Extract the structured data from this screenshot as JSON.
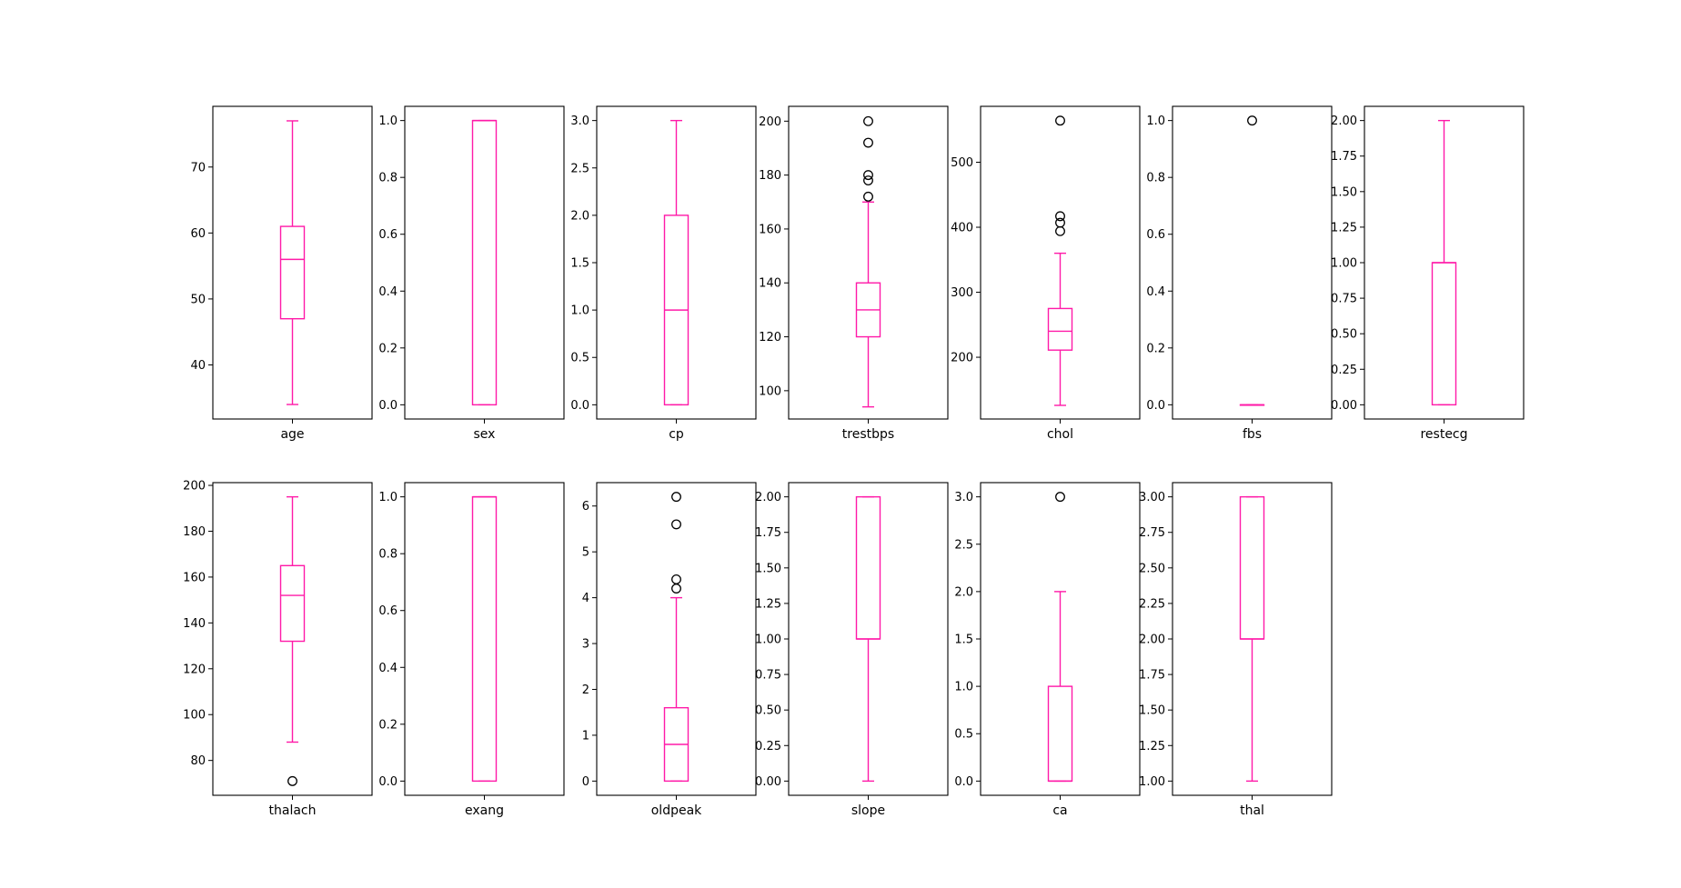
{
  "chart_data": {
    "type": "box",
    "box_color": "#ff1aa8",
    "grid": false,
    "panels": [
      {
        "label": "age",
        "ylim": [
          31.8,
          79.2
        ],
        "ticks": [
          40,
          50,
          60,
          70
        ],
        "tick_labels": [
          "40",
          "50",
          "60",
          "70"
        ],
        "box": {
          "whislo": 34,
          "q1": 47,
          "med": 56,
          "q3": 61,
          "whishi": 77
        },
        "outliers": []
      },
      {
        "label": "sex",
        "ylim": [
          -0.05,
          1.05
        ],
        "ticks": [
          0.0,
          0.2,
          0.4,
          0.6,
          0.8,
          1.0
        ],
        "tick_labels": [
          "0.0",
          "0.2",
          "0.4",
          "0.6",
          "0.8",
          "1.0"
        ],
        "box": {
          "whislo": 0,
          "q1": 0,
          "med": 1,
          "q3": 1,
          "whishi": 1
        },
        "outliers": []
      },
      {
        "label": "cp",
        "ylim": [
          -0.15,
          3.15
        ],
        "ticks": [
          0.0,
          0.5,
          1.0,
          1.5,
          2.0,
          2.5,
          3.0
        ],
        "tick_labels": [
          "0.0",
          "0.5",
          "1.0",
          "1.5",
          "2.0",
          "2.5",
          "3.0"
        ],
        "box": {
          "whislo": 0,
          "q1": 0,
          "med": 1,
          "q3": 2,
          "whishi": 3
        },
        "outliers": []
      },
      {
        "label": "trestbps",
        "ylim": [
          89.5,
          205.5
        ],
        "ticks": [
          100,
          120,
          140,
          160,
          180,
          200
        ],
        "tick_labels": [
          "100",
          "120",
          "140",
          "160",
          "180",
          "200"
        ],
        "box": {
          "whislo": 94,
          "q1": 120,
          "med": 130,
          "q3": 140,
          "whishi": 170
        },
        "outliers": [
          172,
          178,
          180,
          192,
          200
        ]
      },
      {
        "label": "chol",
        "ylim": [
          105,
          586
        ],
        "ticks": [
          200,
          300,
          400,
          500
        ],
        "tick_labels": [
          "200",
          "300",
          "400",
          "500"
        ],
        "box": {
          "whislo": 126,
          "q1": 211,
          "med": 240,
          "q3": 275,
          "whishi": 360
        },
        "outliers": [
          394,
          407,
          417,
          564
        ]
      },
      {
        "label": "fbs",
        "ylim": [
          -0.05,
          1.05
        ],
        "ticks": [
          0.0,
          0.2,
          0.4,
          0.6,
          0.8,
          1.0
        ],
        "tick_labels": [
          "0.0",
          "0.2",
          "0.4",
          "0.6",
          "0.8",
          "1.0"
        ],
        "box": {
          "whislo": 0,
          "q1": 0,
          "med": 0,
          "q3": 0,
          "whishi": 0
        },
        "outliers": [
          1
        ]
      },
      {
        "label": "restecg",
        "ylim": [
          -0.1,
          2.1
        ],
        "ticks": [
          0.0,
          0.25,
          0.5,
          0.75,
          1.0,
          1.25,
          1.5,
          1.75,
          2.0
        ],
        "tick_labels": [
          "0.00",
          "0.25",
          "0.50",
          "0.75",
          "1.00",
          "1.25",
          "1.50",
          "1.75",
          "2.00"
        ],
        "box": {
          "whislo": 0,
          "q1": 0,
          "med": 1,
          "q3": 1,
          "whishi": 2
        },
        "outliers": []
      },
      {
        "label": "thalach",
        "ylim": [
          64.8,
          201.2
        ],
        "ticks": [
          80,
          100,
          120,
          140,
          160,
          180,
          200
        ],
        "tick_labels": [
          "80",
          "100",
          "120",
          "140",
          "160",
          "180",
          "200"
        ],
        "box": {
          "whislo": 88,
          "q1": 132,
          "med": 152,
          "q3": 165,
          "whishi": 195
        },
        "outliers": [
          71
        ]
      },
      {
        "label": "exang",
        "ylim": [
          -0.05,
          1.05
        ],
        "ticks": [
          0.0,
          0.2,
          0.4,
          0.6,
          0.8,
          1.0
        ],
        "tick_labels": [
          "0.0",
          "0.2",
          "0.4",
          "0.6",
          "0.8",
          "1.0"
        ],
        "box": {
          "whislo": 0,
          "q1": 0,
          "med": 1,
          "q3": 1,
          "whishi": 1
        },
        "outliers": []
      },
      {
        "label": "oldpeak",
        "ylim": [
          -0.31,
          6.51
        ],
        "ticks": [
          0,
          1,
          2,
          3,
          4,
          5,
          6
        ],
        "tick_labels": [
          "0",
          "1",
          "2",
          "3",
          "4",
          "5",
          "6"
        ],
        "box": {
          "whislo": 0,
          "q1": 0,
          "med": 0.8,
          "q3": 1.6,
          "whishi": 4.0
        },
        "outliers": [
          4.2,
          4.4,
          5.6,
          6.2
        ]
      },
      {
        "label": "slope",
        "ylim": [
          -0.1,
          2.1
        ],
        "ticks": [
          0.0,
          0.25,
          0.5,
          0.75,
          1.0,
          1.25,
          1.5,
          1.75,
          2.0
        ],
        "tick_labels": [
          "0.00",
          "0.25",
          "0.50",
          "0.75",
          "1.00",
          "1.25",
          "1.50",
          "1.75",
          "2.00"
        ],
        "box": {
          "whislo": 0,
          "q1": 1,
          "med": 1,
          "q3": 2,
          "whishi": 2
        },
        "outliers": []
      },
      {
        "label": "ca",
        "ylim": [
          -0.15,
          3.15
        ],
        "ticks": [
          0.0,
          0.5,
          1.0,
          1.5,
          2.0,
          2.5,
          3.0
        ],
        "tick_labels": [
          "0.0",
          "0.5",
          "1.0",
          "1.5",
          "2.0",
          "2.5",
          "3.0"
        ],
        "box": {
          "whislo": 0,
          "q1": 0,
          "med": 0,
          "q3": 1,
          "whishi": 2
        },
        "outliers": [
          3
        ]
      },
      {
        "label": "thal",
        "ylim": [
          0.9,
          3.1
        ],
        "ticks": [
          1.0,
          1.25,
          1.5,
          1.75,
          2.0,
          2.25,
          2.5,
          2.75,
          3.0
        ],
        "tick_labels": [
          "1.00",
          "1.25",
          "1.50",
          "1.75",
          "2.00",
          "2.25",
          "2.50",
          "2.75",
          "3.00"
        ],
        "box": {
          "whislo": 1,
          "q1": 2,
          "med": 2,
          "q3": 3,
          "whishi": 3
        },
        "outliers": []
      }
    ]
  }
}
